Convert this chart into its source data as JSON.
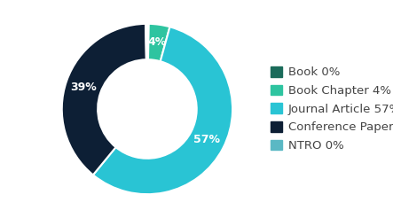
{
  "labels": [
    "Book",
    "Book Chapter",
    "Journal Article",
    "Conference Paper",
    "NTRO"
  ],
  "values": [
    0.3,
    4,
    57,
    39,
    0.3
  ],
  "colors": [
    "#1b6b5a",
    "#2ec4a0",
    "#29c4d4",
    "#0d1f35",
    "#5ab8c4"
  ],
  "legend_labels": [
    "Book 0%",
    "Book Chapter 4%",
    "Journal Article 57%",
    "Conference Paper 39%",
    "NTRO 0%"
  ],
  "wedge_labels": [
    "",
    "4%",
    "57%",
    "39%",
    ""
  ],
  "background_color": "#ffffff",
  "donut_width": 0.42,
  "label_fontsize": 9,
  "legend_fontsize": 9.5
}
